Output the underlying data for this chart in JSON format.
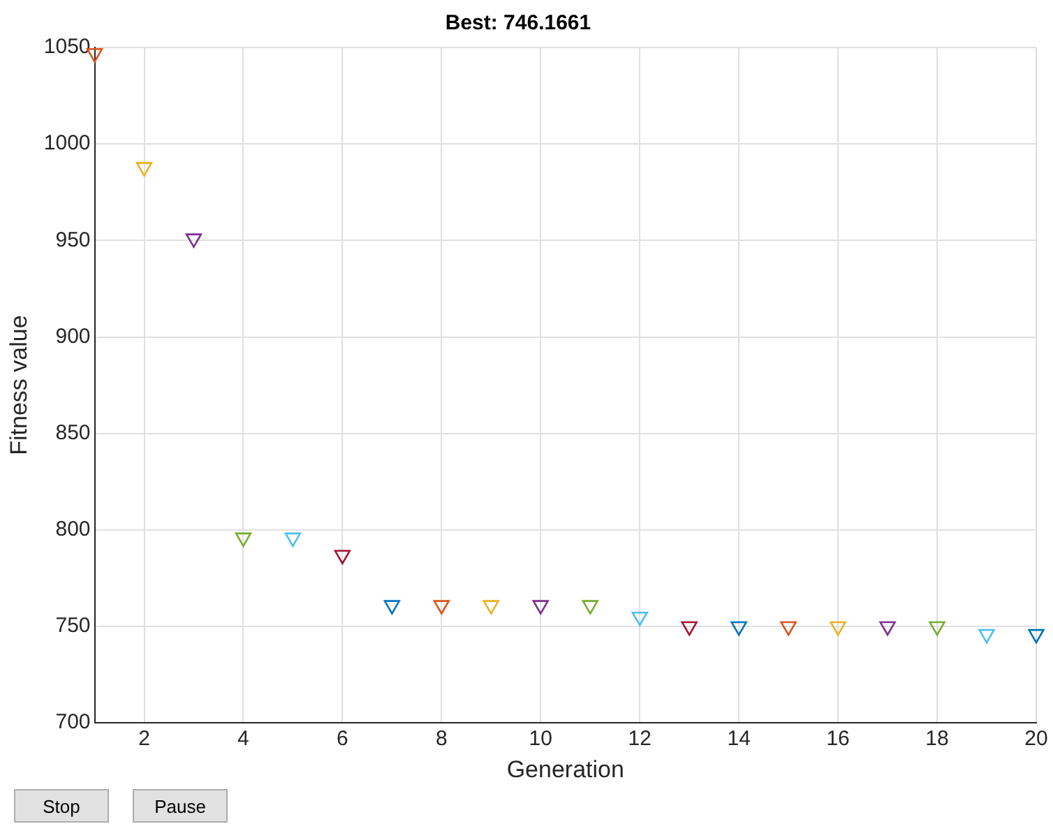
{
  "chart_data": {
    "type": "scatter",
    "title": "Best: 746.1661",
    "xlabel": "Generation",
    "ylabel": "Fitness value",
    "x": [
      1,
      2,
      3,
      4,
      5,
      6,
      7,
      8,
      9,
      10,
      11,
      12,
      13,
      14,
      15,
      16,
      17,
      18,
      19,
      20
    ],
    "values": [
      1047,
      988,
      951,
      796,
      796,
      787,
      761,
      761,
      761,
      761,
      761,
      755,
      750,
      750,
      750,
      750,
      750,
      750,
      746,
      746
    ],
    "colors": [
      "#d95319",
      "#edb120",
      "#7e2f8e",
      "#77ac30",
      "#4dbeee",
      "#a2142f",
      "#0072bd",
      "#d95319",
      "#edb120",
      "#7e2f8e",
      "#77ac30",
      "#4dbeee",
      "#a2142f",
      "#0072bd",
      "#d95319",
      "#edb120",
      "#7e2f8e",
      "#77ac30",
      "#4dbeee",
      "#0072bd"
    ],
    "xlim": [
      1,
      20
    ],
    "xticks": [
      2,
      4,
      6,
      8,
      10,
      12,
      14,
      16,
      18,
      20
    ],
    "ylim": [
      700,
      1050
    ],
    "yticks": [
      700,
      750,
      800,
      850,
      900,
      950,
      1000,
      1050
    ],
    "grid": true,
    "marker": "triangle",
    "legend": false,
    "annotations": [
      "Stop",
      "Pause"
    ]
  }
}
